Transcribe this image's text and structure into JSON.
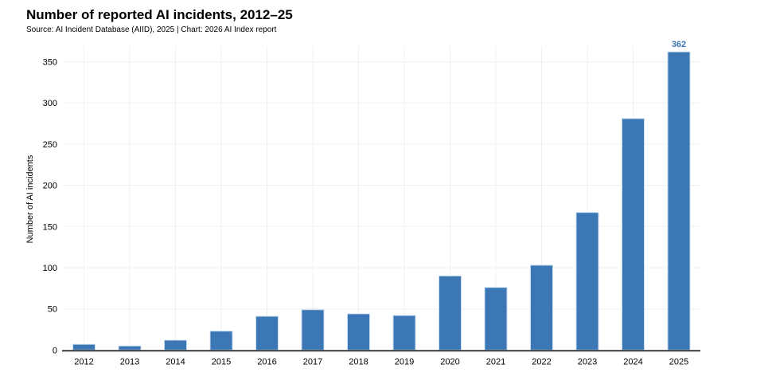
{
  "chart_data": {
    "type": "bar",
    "title": "Number of reported AI incidents, 2012–25",
    "subtitle": "Source: AI Incident Database (AIID), 2025 | Chart: 2026 AI Index report",
    "xlabel": "",
    "ylabel": "Number of AI incidents",
    "categories": [
      "2012",
      "2013",
      "2014",
      "2015",
      "2016",
      "2017",
      "2018",
      "2019",
      "2020",
      "2021",
      "2022",
      "2023",
      "2024",
      "2025"
    ],
    "values": [
      7,
      5,
      12,
      23,
      41,
      49,
      44,
      42,
      90,
      76,
      103,
      167,
      281,
      362
    ],
    "data_labels": [
      {
        "category": "2025",
        "text": "362"
      }
    ],
    "ylim": [
      0,
      370
    ],
    "yticks": [
      0,
      50,
      100,
      150,
      200,
      250,
      300,
      350
    ],
    "grid": true,
    "colors": {
      "bar": "#3b76b5",
      "label": "#3b76b5",
      "grid": "#f0f0f0"
    }
  }
}
